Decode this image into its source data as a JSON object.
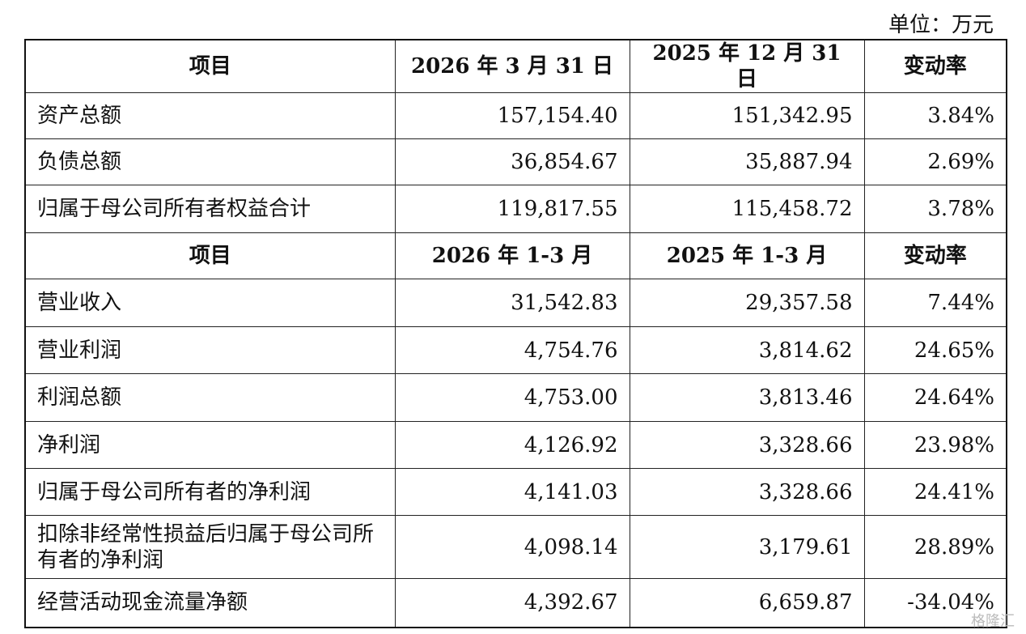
{
  "unit": "单位：万元",
  "table": {
    "sections": [
      {
        "header": [
          "项目",
          "2026 年 3 月 31 日",
          "2025 年 12 月 31 日",
          "变动率"
        ],
        "rows": [
          [
            "资产总额",
            "157,154.40",
            "151,342.95",
            "3.84%"
          ],
          [
            "负债总额",
            "36,854.67",
            "35,887.94",
            "2.69%"
          ],
          [
            "归属于母公司所有者权益合计",
            "119,817.55",
            "115,458.72",
            "3.78%"
          ]
        ]
      },
      {
        "header": [
          "项目",
          "2026 年 1-3 月",
          "2025 年 1-3 月",
          "变动率"
        ],
        "rows": [
          [
            "营业收入",
            "31,542.83",
            "29,357.58",
            "7.44%"
          ],
          [
            "营业利润",
            "4,754.76",
            "3,814.62",
            "24.65%"
          ],
          [
            "利润总额",
            "4,753.00",
            "3,813.46",
            "24.64%"
          ],
          [
            "净利润",
            "4,126.92",
            "3,328.66",
            "23.98%"
          ],
          [
            "归属于母公司所有者的净利润",
            "4,141.03",
            "3,328.66",
            "24.41%"
          ],
          [
            "扣除非经常性损益后归属于母公司所有者的净利润",
            "4,098.14",
            "3,179.61",
            "28.89%"
          ],
          [
            "经营活动现金流量净额",
            "4,392.67",
            "6,659.87",
            "-34.04%"
          ]
        ]
      }
    ]
  },
  "watermark": "格隆汇"
}
